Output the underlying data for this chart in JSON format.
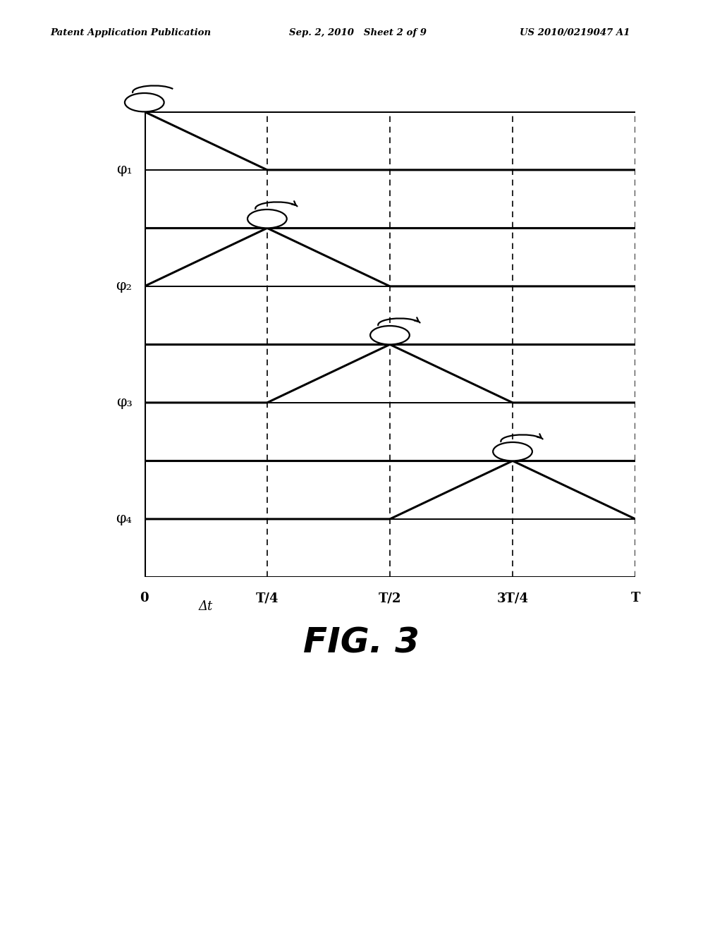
{
  "header_left": "Patent Application Publication",
  "header_mid": "Sep. 2, 2010   Sheet 2 of 9",
  "header_right": "US 2010/0219047 A1",
  "fig_label": "FIG. 3",
  "phi_labels": [
    "φ₁",
    "φ₂",
    "φ₃",
    "φ₄"
  ],
  "x_labels": [
    "0",
    "T/4",
    "T/2",
    "3T/4",
    "T"
  ],
  "delta_t_label": "Δt",
  "background_color": "#ffffff",
  "line_color": "#000000"
}
